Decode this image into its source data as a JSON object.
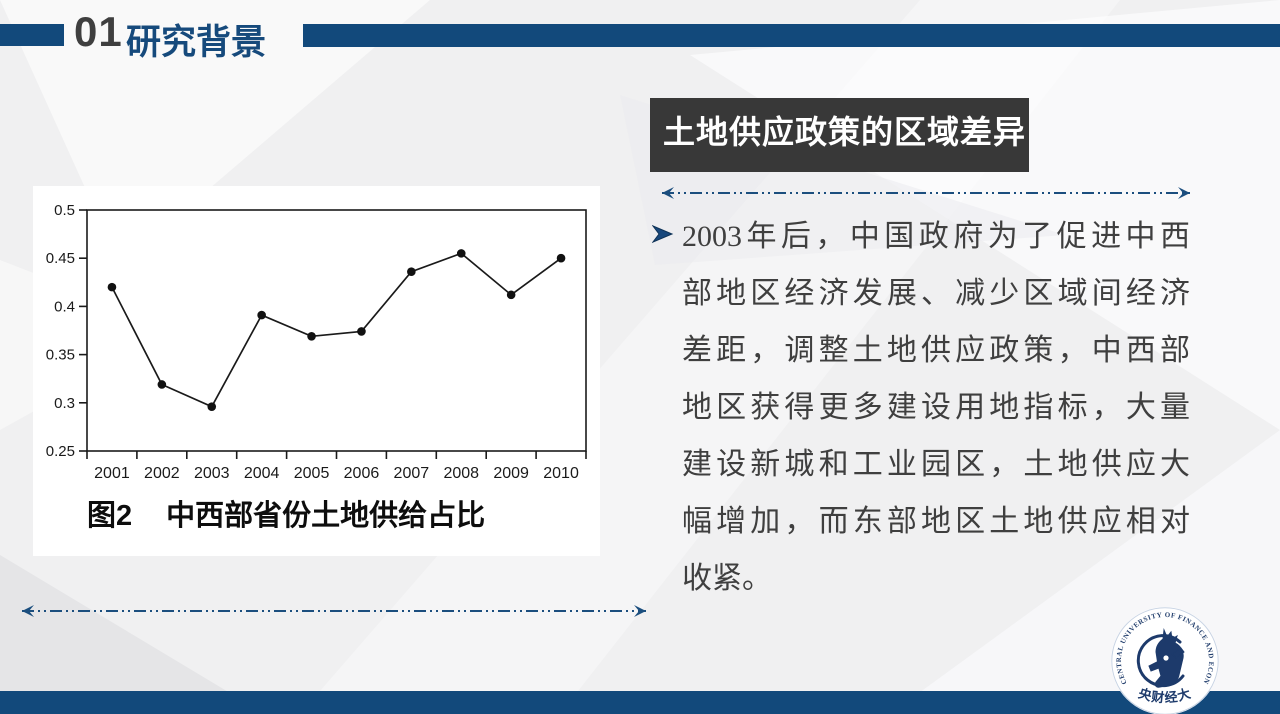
{
  "header": {
    "section_number": "01",
    "section_title": "研究背景"
  },
  "figure": {
    "caption_prefix": "图2",
    "caption": "中西部省份土地供给占比"
  },
  "chart_data": {
    "type": "line",
    "title": "",
    "xlabel": "",
    "ylabel": "",
    "categories": [
      "2001",
      "2002",
      "2003",
      "2004",
      "2005",
      "2006",
      "2007",
      "2008",
      "2009",
      "2010"
    ],
    "values": [
      0.42,
      0.319,
      0.296,
      0.391,
      0.369,
      0.374,
      0.436,
      0.455,
      0.412,
      0.45
    ],
    "ylim": [
      0.25,
      0.5
    ],
    "yticks": [
      0.25,
      0.3,
      0.35,
      0.4,
      0.45,
      0.5
    ],
    "ytick_labels": [
      "0.25",
      "0.3",
      "0.35",
      "0.4",
      "0.45",
      "0.5"
    ],
    "grid": false,
    "legend": false,
    "marker": "circle",
    "line_color": "#1a1a1a",
    "marker_color": "#111111"
  },
  "right_panel": {
    "heading": "土地供应政策的区域差异",
    "bullet_icon": "arrowhead",
    "paragraph_lines": [
      "2003年后，中国政府为了促进中西",
      "部地区经济发展、减少区域间经济",
      "差距，调整土地供应政策，中西部",
      "地区获得更多建设用地指标，大量",
      "建设新城和工业园区，土地供应大",
      "幅增加，而东部地区土地供应相对",
      "收紧。"
    ]
  },
  "logo": {
    "ring_text": "CENTRAL UNIVERSITY OF FINANCE AND ECONOMICS",
    "chinese_name": "中央财经大学"
  },
  "colors": {
    "accent_blue": "#12497B",
    "title_blue": "#164A7C",
    "heading_box_bg": "#383838",
    "body_text": "#3F3F3F",
    "divider_blue": "#1B4E7E",
    "logo_navy": "#1D3A6B",
    "panel_white": "#FFFFFF",
    "slide_bg": "#F0F0F1"
  }
}
